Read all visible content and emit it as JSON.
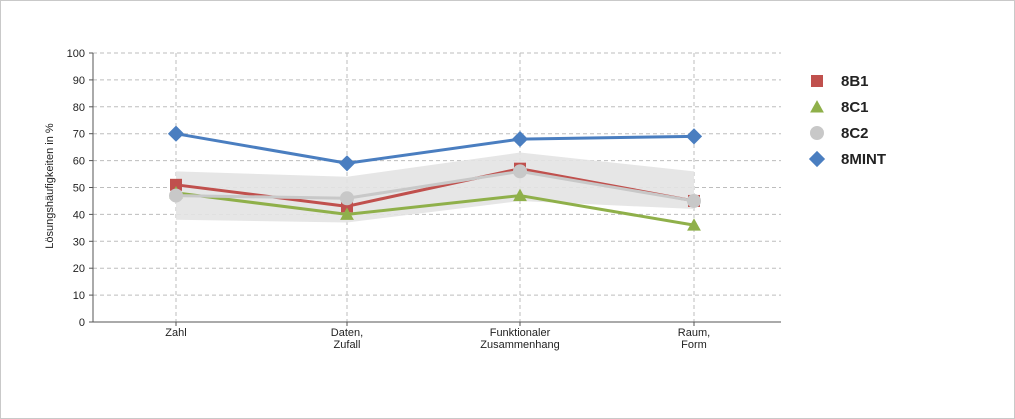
{
  "chart_data": {
    "type": "line",
    "title": "",
    "xlabel": "",
    "ylabel": "Lösungshäufigkeiten in %",
    "ylim": [
      0,
      100
    ],
    "yticks": [
      0,
      10,
      20,
      30,
      40,
      50,
      60,
      70,
      80,
      90,
      100
    ],
    "grid": true,
    "legend_position": "right",
    "categories": [
      [
        "Zahl"
      ],
      [
        "Daten,",
        "Zufall"
      ],
      [
        "Funktionaler",
        "Zusammenhang"
      ],
      [
        "Raum,",
        "Form"
      ]
    ],
    "band": {
      "lower": [
        38,
        37,
        45,
        42
      ],
      "upper": [
        56,
        54,
        63,
        56
      ],
      "color": "#e3e3e3"
    },
    "series": [
      {
        "name": "8B1",
        "values": [
          51,
          43,
          57,
          45
        ],
        "color": "#c0504d",
        "marker": "square"
      },
      {
        "name": "8C1",
        "values": [
          48,
          40,
          47,
          36
        ],
        "color": "#8fb04a",
        "marker": "triangle"
      },
      {
        "name": "8C2",
        "values": [
          47,
          46,
          56,
          45
        ],
        "color": "#c8c8c8",
        "marker": "circle"
      },
      {
        "name": "8MINT",
        "values": [
          70,
          59,
          68,
          69
        ],
        "color": "#4a7ec0",
        "marker": "diamond"
      }
    ]
  }
}
